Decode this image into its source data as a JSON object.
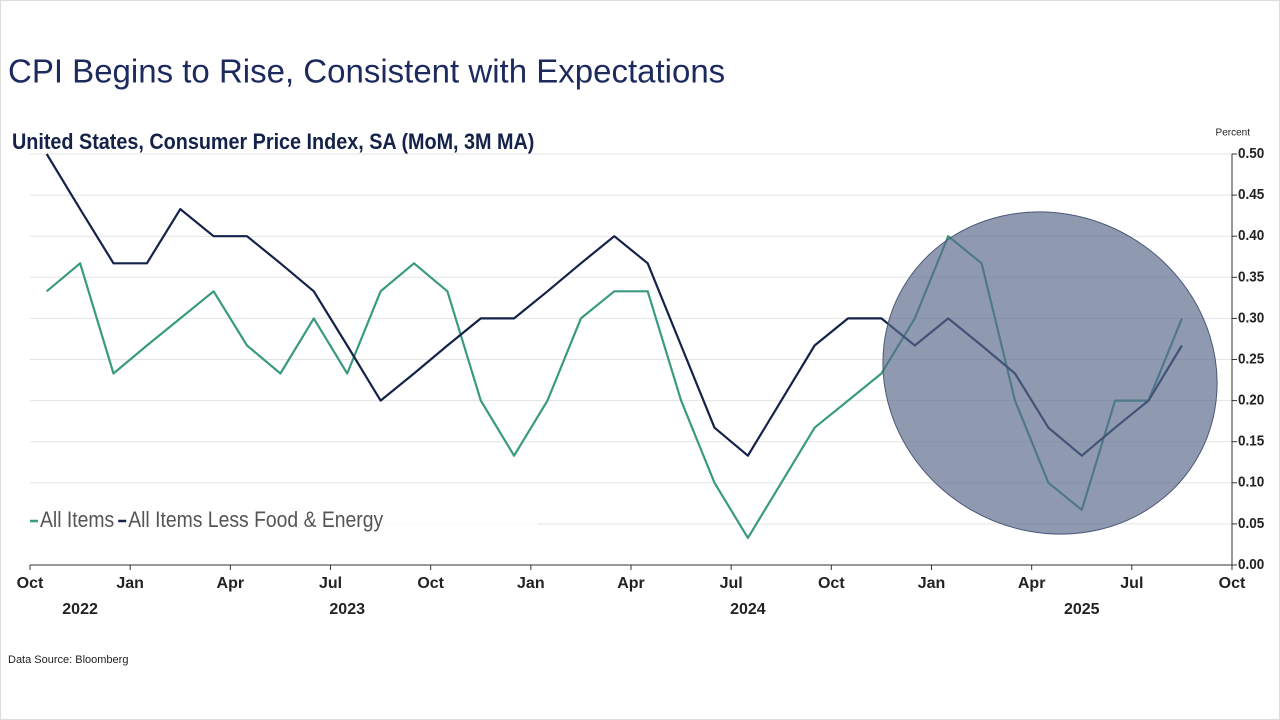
{
  "chart_data": {
    "type": "line",
    "title": "CPI Begins to Rise, Consistent with Expectations",
    "subtitle": "United States, Consumer Price Index, SA (MoM, 3M MA)",
    "y_axis_label": "Percent",
    "source": "Data Source: Bloomberg",
    "x": [
      "2022-10",
      "2022-11",
      "2022-12",
      "2023-01",
      "2023-02",
      "2023-03",
      "2023-04",
      "2023-05",
      "2023-06",
      "2023-07",
      "2023-08",
      "2023-09",
      "2023-10",
      "2023-11",
      "2023-12",
      "2024-01",
      "2024-02",
      "2024-03",
      "2024-04",
      "2024-05",
      "2024-06",
      "2024-07",
      "2024-08",
      "2024-09",
      "2024-10",
      "2024-11",
      "2024-12",
      "2025-01",
      "2025-02",
      "2025-03",
      "2025-04",
      "2025-05",
      "2025-06",
      "2025-07",
      "2025-08"
    ],
    "series": [
      {
        "name": "All Items",
        "color": "#3a9a80",
        "values": [
          0.333,
          0.367,
          0.233,
          0.267,
          0.3,
          0.333,
          0.267,
          0.233,
          0.3,
          0.233,
          0.333,
          0.367,
          0.333,
          0.2,
          0.133,
          0.2,
          0.3,
          0.333,
          0.333,
          0.2,
          0.1,
          0.033,
          0.1,
          0.167,
          0.2,
          0.233,
          0.3,
          0.4,
          0.367,
          0.2,
          0.1,
          0.067,
          0.2,
          0.2,
          0.3
        ]
      },
      {
        "name": "All Items Less Food & Energy",
        "color": "#14224a",
        "values": [
          0.5,
          0.433,
          0.367,
          0.367,
          0.433,
          0.4,
          0.4,
          0.367,
          0.333,
          0.267,
          0.2,
          0.233,
          0.267,
          0.3,
          0.3,
          0.333,
          0.367,
          0.4,
          0.367,
          0.267,
          0.167,
          0.133,
          0.2,
          0.267,
          0.3,
          0.3,
          0.267,
          0.3,
          0.267,
          0.233,
          0.167,
          0.133,
          0.167,
          0.2,
          0.267
        ]
      }
    ],
    "xlim": [
      "2022-10",
      "2025-10"
    ],
    "xticks": [
      {
        "value": "2022-10",
        "label": "Oct"
      },
      {
        "value": "2023-01",
        "label": "Jan"
      },
      {
        "value": "2023-04",
        "label": "Apr"
      },
      {
        "value": "2023-07",
        "label": "Jul"
      },
      {
        "value": "2023-10",
        "label": "Oct"
      },
      {
        "value": "2024-01",
        "label": "Jan"
      },
      {
        "value": "2024-04",
        "label": "Apr"
      },
      {
        "value": "2024-07",
        "label": "Jul"
      },
      {
        "value": "2024-10",
        "label": "Oct"
      },
      {
        "value": "2025-01",
        "label": "Jan"
      },
      {
        "value": "2025-04",
        "label": "Apr"
      },
      {
        "value": "2025-07",
        "label": "Jul"
      },
      {
        "value": "2025-10",
        "label": "Oct"
      }
    ],
    "year_labels": [
      {
        "value": "2022-11",
        "label": "2022"
      },
      {
        "value": "2023-07",
        "label": "2023"
      },
      {
        "value": "2024-07",
        "label": "2024"
      },
      {
        "value": "2025-05",
        "label": "2025"
      }
    ],
    "ylim": [
      0,
      0.5
    ],
    "yticks": [
      {
        "value": 0,
        "label": "0.00"
      },
      {
        "value": 0.05,
        "label": "0.05"
      },
      {
        "value": 0.1,
        "label": "0.10"
      },
      {
        "value": 0.15,
        "label": "0.15"
      },
      {
        "value": 0.2,
        "label": "0.20"
      },
      {
        "value": 0.25,
        "label": "0.25"
      },
      {
        "value": 0.3,
        "label": "0.30"
      },
      {
        "value": 0.35,
        "label": "0.35"
      },
      {
        "value": 0.4,
        "label": "0.40"
      },
      {
        "value": 0.45,
        "label": "0.45"
      },
      {
        "value": 0.5,
        "label": "0.50"
      }
    ],
    "grid": true,
    "legend": "lower left"
  }
}
